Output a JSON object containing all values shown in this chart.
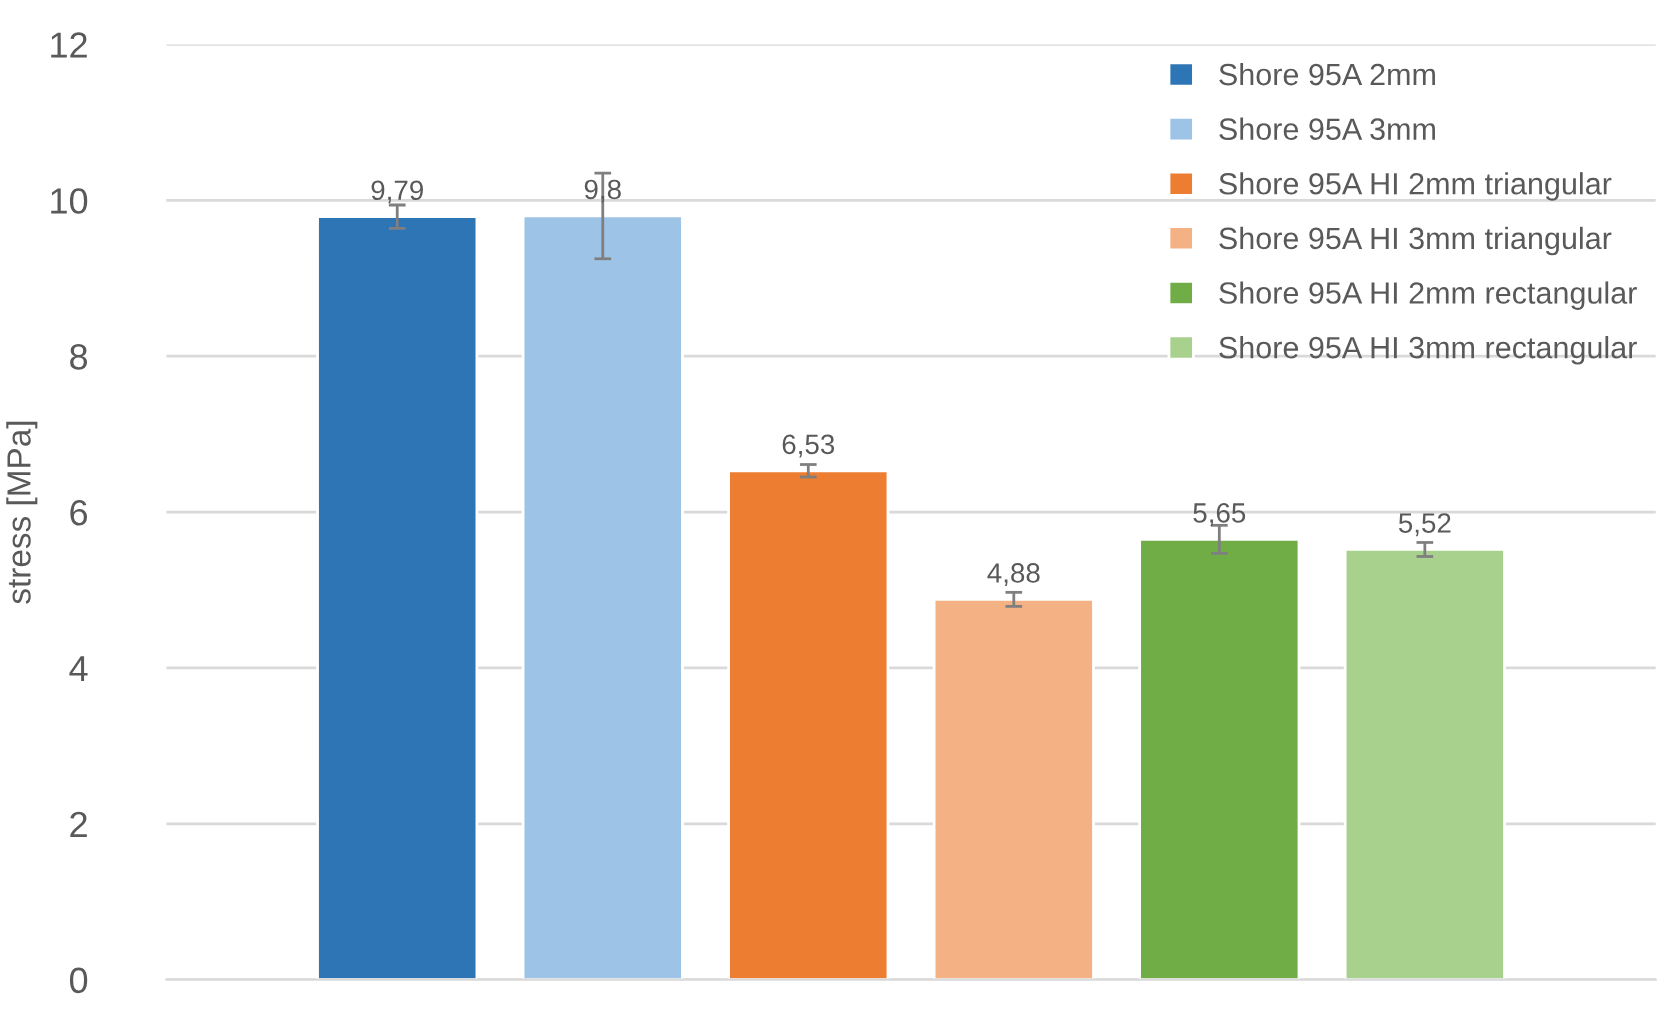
{
  "chart_data": {
    "type": "bar",
    "ylabel": "stress [MPa]",
    "categories": [
      null
    ],
    "series": [
      {
        "name": "Shore 95A 2mm",
        "color": "#2e75b6",
        "values": [
          9.79
        ],
        "errors": [
          0.15
        ],
        "value_labels": [
          "9,79"
        ]
      },
      {
        "name": "Shore 95A 3mm",
        "color": "#9dc3e6",
        "values": [
          9.8
        ],
        "errors": [
          0.55
        ],
        "value_labels": [
          "9,8"
        ]
      },
      {
        "name": "Shore 95A HI 2mm triangular",
        "color": "#ed7d31",
        "values": [
          6.53
        ],
        "errors": [
          0.08
        ],
        "value_labels": [
          "6,53"
        ]
      },
      {
        "name": "Shore 95A HI 3mm triangular",
        "color": "#f4b183",
        "values": [
          4.88
        ],
        "errors": [
          0.09
        ],
        "value_labels": [
          "4,88"
        ]
      },
      {
        "name": "Shore 95A HI 2mm rectangular",
        "color": "#70ad47",
        "values": [
          5.65
        ],
        "errors": [
          0.18
        ],
        "value_labels": [
          "5,65"
        ]
      },
      {
        "name": "Shore 95A HI 3mm rectangular",
        "color": "#a9d18e",
        "values": [
          5.52
        ],
        "errors": [
          0.09
        ],
        "value_labels": [
          "5,52"
        ]
      }
    ],
    "ylim": [
      0,
      12
    ],
    "yticks": [
      0,
      2,
      4,
      6,
      8,
      10,
      12
    ],
    "grid": "y",
    "legend": "top right"
  }
}
